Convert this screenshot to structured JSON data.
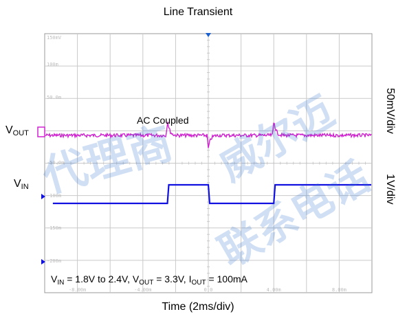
{
  "chart_data": {
    "type": "line",
    "title": "Line Transient",
    "xlabel": "Time (2ms/div)",
    "right_labels": [
      "50mV/div",
      "1V/div"
    ],
    "x_tick_labels": [
      "-8.00m",
      "-4.00m",
      "0.0",
      "4.00m",
      "8.00m"
    ],
    "y_tick_labels": [
      "150mV",
      "100m",
      "50.0m",
      "-50.0m",
      "-100m",
      "-150m",
      "-200m"
    ],
    "x": [
      -9.5,
      -2.5,
      2.5,
      9.5
    ],
    "grid": true,
    "series": [
      {
        "name": "VOUT",
        "color": "#d020d0",
        "coupling": "AC Coupled",
        "baseline_mV": 0,
        "events": [
          {
            "t_ms": -2.5,
            "peak_mV": 27
          },
          {
            "t_ms": 0.0,
            "peak_mV": -22
          },
          {
            "t_ms": 4.0,
            "peak_mV": 27
          }
        ]
      },
      {
        "name": "VIN",
        "color": "#1010e0",
        "levels_V": [
          1.8,
          2.4
        ],
        "steps": [
          {
            "t_ms": -9.5,
            "v": 1.8
          },
          {
            "t_ms": -2.5,
            "v": 2.4
          },
          {
            "t_ms": 0.0,
            "v": 1.8
          },
          {
            "t_ms": 4.0,
            "v": 2.4
          },
          {
            "t_ms": 9.5,
            "v": 2.4
          }
        ]
      }
    ]
  },
  "labels": {
    "vout_main": "V",
    "vout_sub": "OUT",
    "vin_main": "V",
    "vin_sub": "IN",
    "ac_coupled": "AC Coupled"
  },
  "conditions": {
    "vin_main": "V",
    "vin_sub": "IN",
    "vin_text": " = 1.8V to 2.4V, ",
    "vout_main": "V",
    "vout_sub": "OUT",
    "vout_text": " = 3.3V, ",
    "iout_main": "I",
    "iout_sub": "OUT",
    "iout_text": " = 100mA"
  },
  "watermark": [
    "代理商",
    "威尔迈",
    "联系电话"
  ],
  "colors": {
    "grid": "#c9c9c9",
    "vout": "#d020d0",
    "vin": "#1010e0",
    "watermark": "#286ecd"
  }
}
